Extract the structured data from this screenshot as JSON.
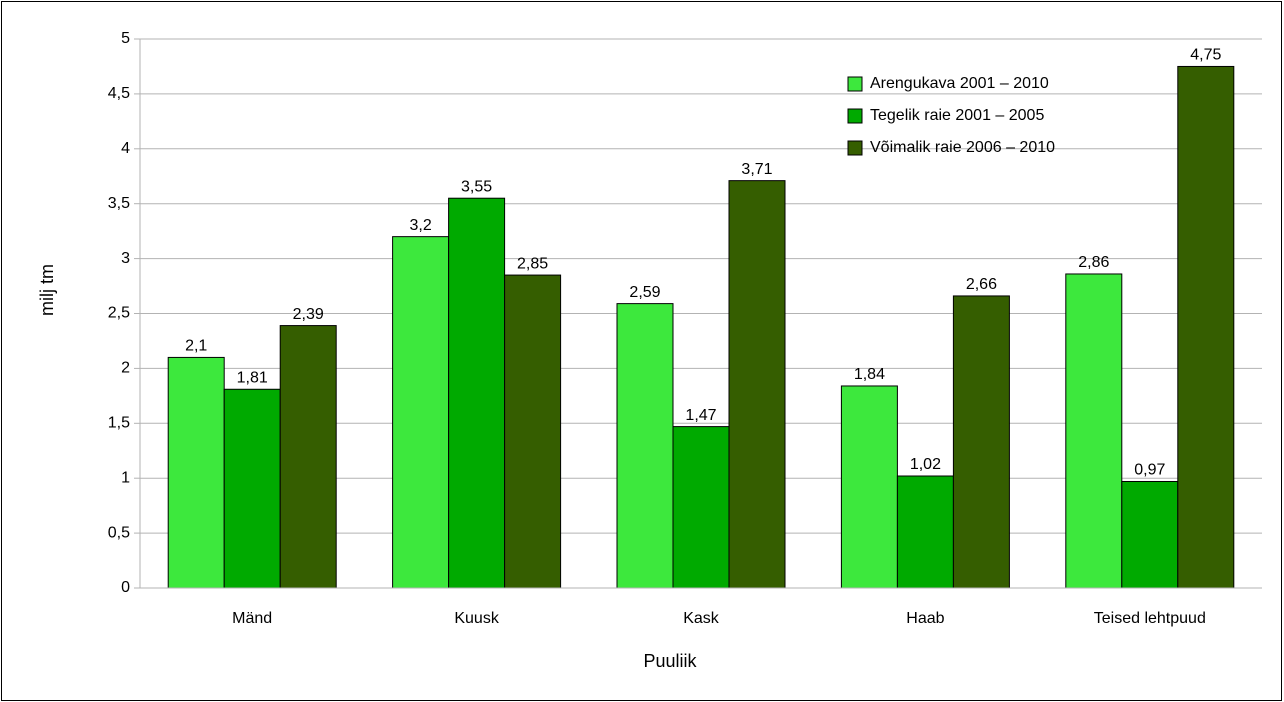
{
  "chart_data": {
    "type": "bar",
    "x_label": "Puuliik",
    "y_label": "milj tm",
    "categories": [
      "Mänd",
      "Kuusk",
      "Kask",
      "Haab",
      "Teised lehtpuud"
    ],
    "series": [
      {
        "name": "Arengukava 2001 – 2010",
        "color": "#3de83d",
        "values": [
          2.1,
          3.2,
          2.59,
          1.84,
          2.86
        ],
        "value_labels": [
          "2,1",
          "3,2",
          "2,59",
          "1,84",
          "2,86"
        ]
      },
      {
        "name": "Tegelik raie 2001 – 2005",
        "color": "#00aa00",
        "values": [
          1.81,
          3.55,
          1.47,
          1.02,
          0.97
        ],
        "value_labels": [
          "1,81",
          "3,55",
          "1,47",
          "1,02",
          "0,97"
        ]
      },
      {
        "name": "Võimalik raie 2006 – 2010",
        "color": "#355e00",
        "values": [
          2.39,
          2.85,
          3.71,
          2.66,
          4.75
        ],
        "value_labels": [
          "2,39",
          "2,85",
          "3,71",
          "2,66",
          "4,75"
        ]
      }
    ],
    "ylim": [
      0,
      5
    ],
    "yticks": [
      0,
      {
        "value": 0.5,
        "label": "0,5"
      },
      1,
      {
        "value": 1.5,
        "label": "1,5"
      },
      2,
      {
        "value": 2.5,
        "label": "2,5"
      },
      3,
      {
        "value": 3.5,
        "label": "3,5"
      },
      4,
      {
        "value": 4.5,
        "label": "4,5"
      },
      5
    ],
    "grid": true,
    "legend": "upper right"
  }
}
